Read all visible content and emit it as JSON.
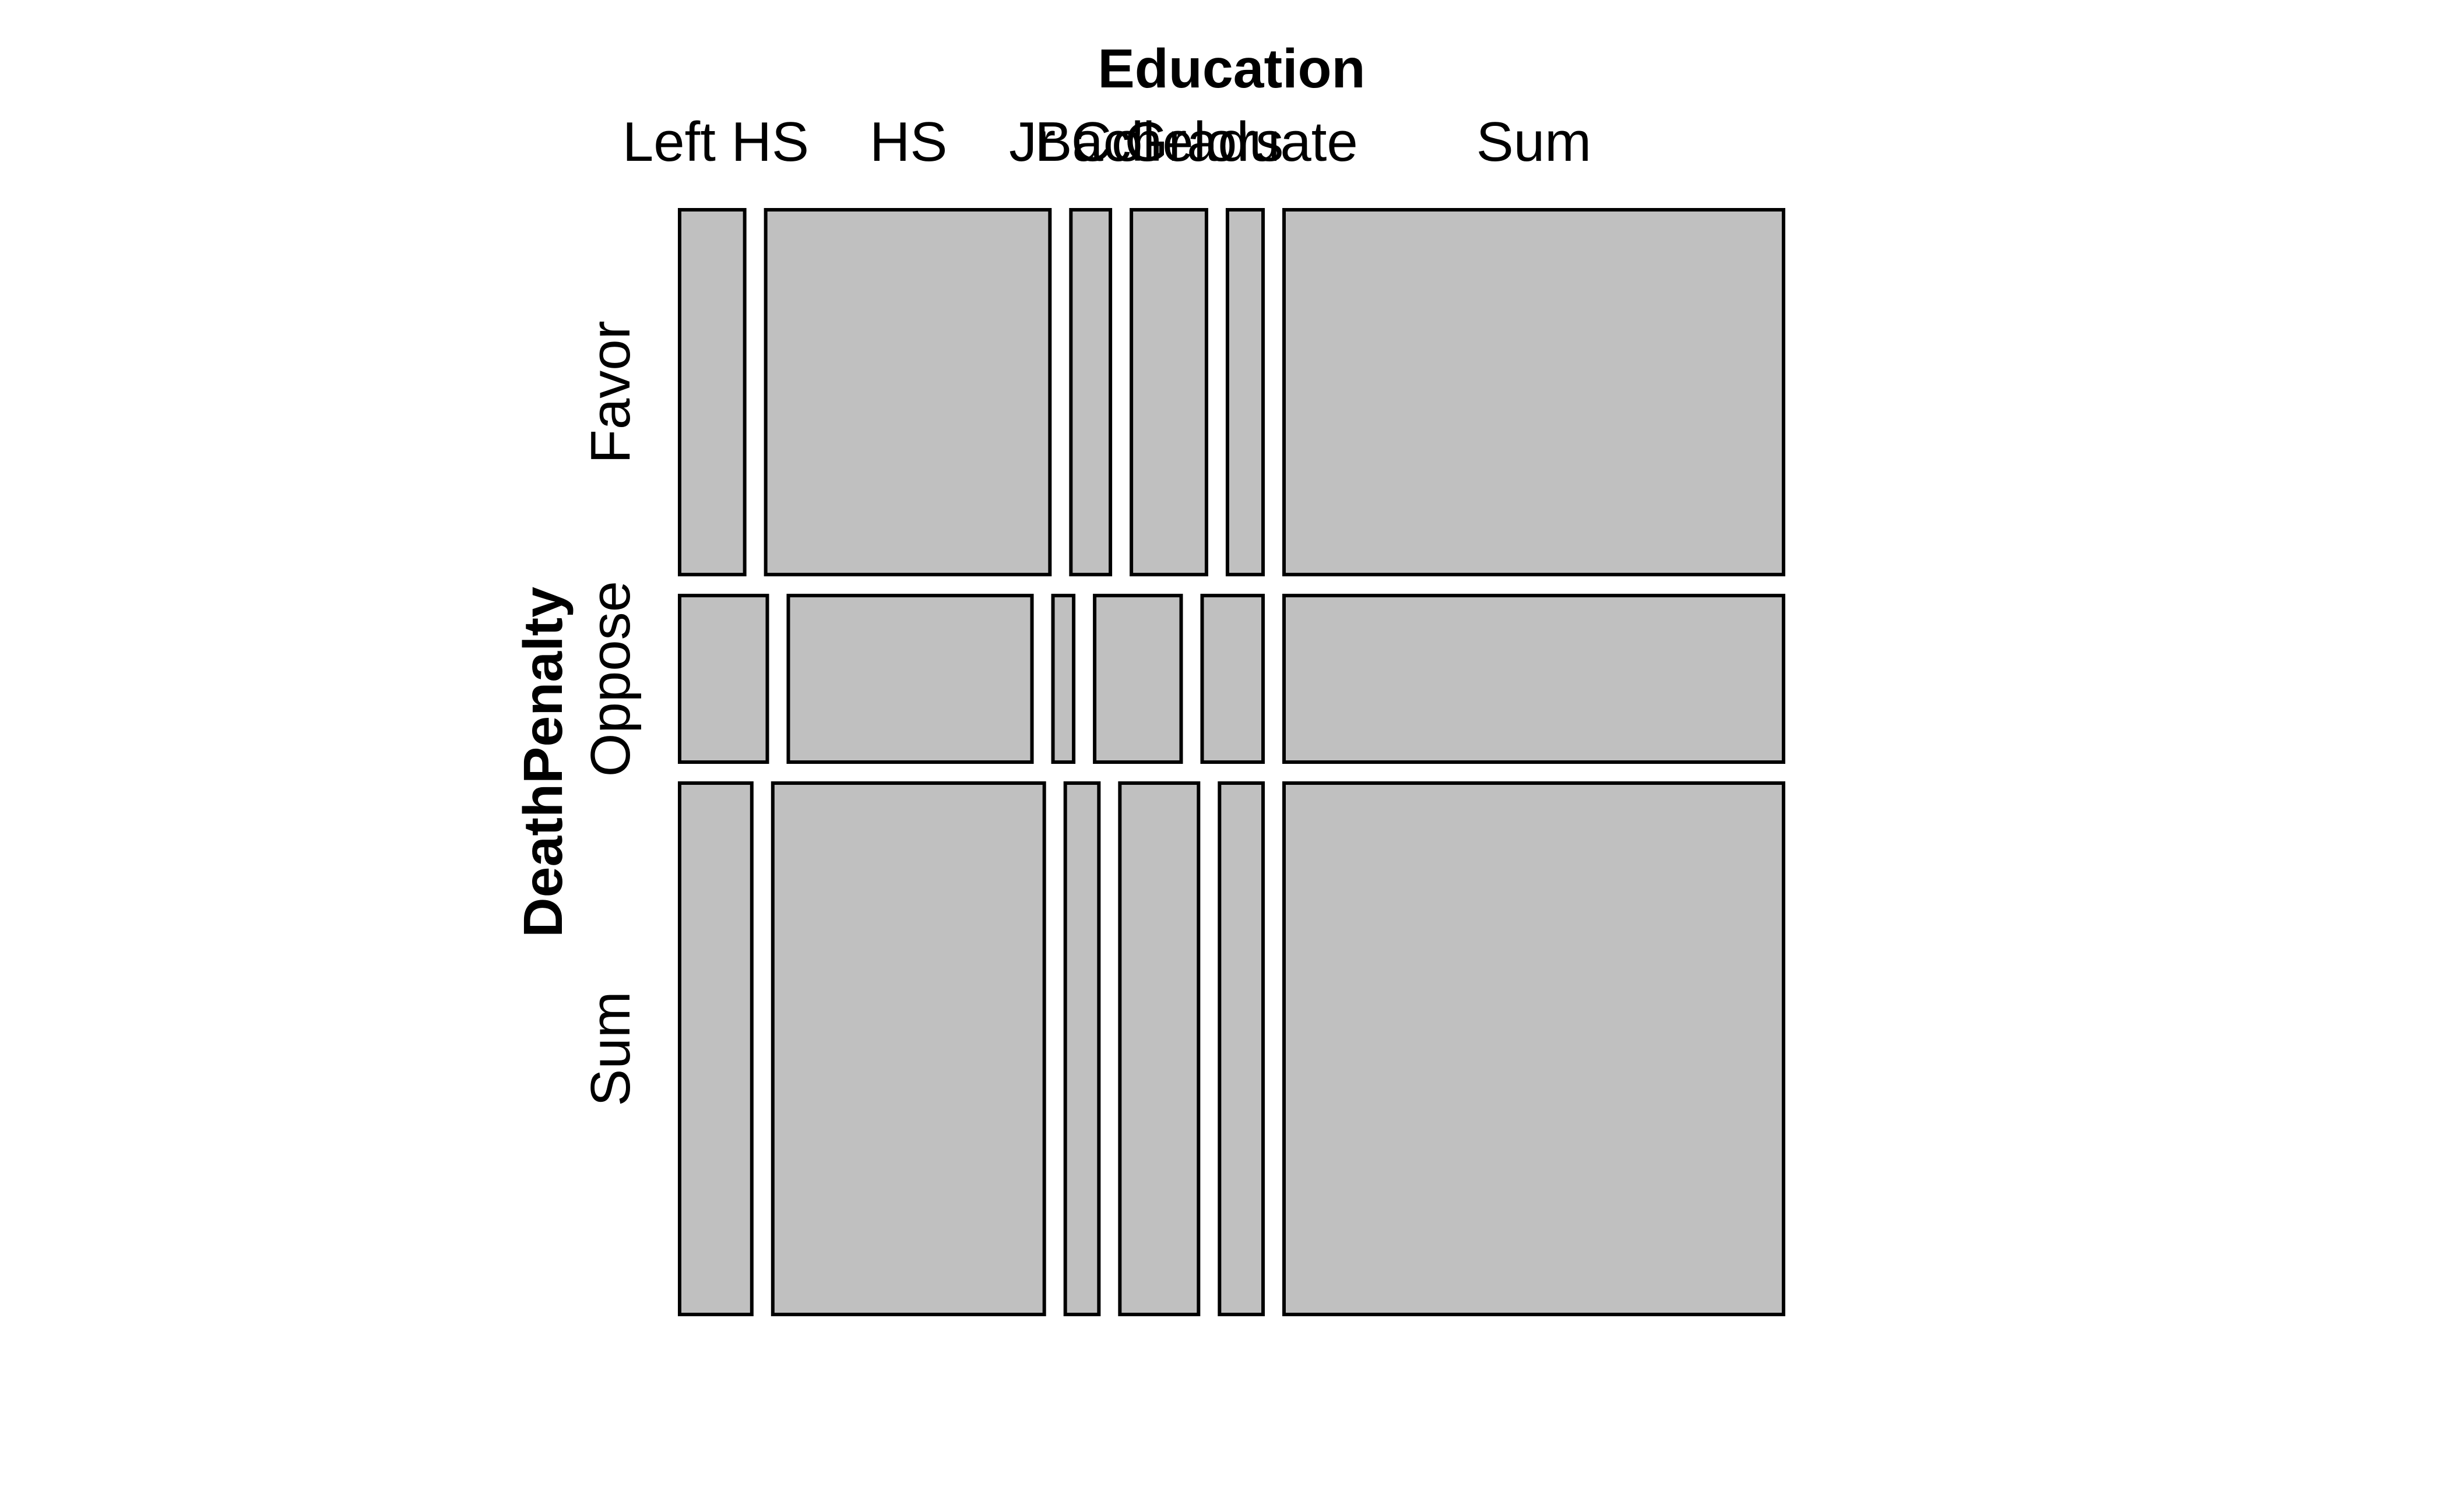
{
  "chart_data": {
    "type": "mosaic",
    "x_variable": "Education",
    "y_variable": "DeathPenalty",
    "x_categories": [
      "Left HS",
      "HS",
      "Jr Col",
      "Bachelors",
      "Graduate",
      "Sum"
    ],
    "y_categories": [
      "Favor",
      "Oppose",
      "Sum"
    ],
    "values": [
      [
        117,
        511,
        71,
        135,
        64,
        898
      ],
      [
        72,
        200,
        17,
        71,
        50,
        410
      ],
      [
        189,
        711,
        88,
        206,
        114,
        1308
      ]
    ],
    "fill_color": "#c0c0c0",
    "stroke_color": "#000000"
  }
}
